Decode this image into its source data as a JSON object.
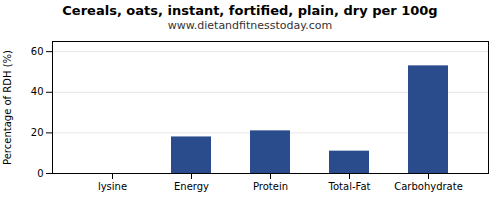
{
  "chart_data": {
    "type": "bar",
    "title": "Cereals, oats, instant, fortified, plain, dry per 100g",
    "subtitle": "www.dietandfitnesstoday.com",
    "categories": [
      "lysine",
      "Energy",
      "Protein",
      "Total-Fat",
      "Carbohydrate"
    ],
    "values": [
      0,
      18,
      21,
      11,
      53
    ],
    "color": "#2a4b8c",
    "ylabel": "Percentage of RDH (%)",
    "ylim": [
      0,
      65
    ],
    "yticks": [
      0,
      20,
      40,
      60
    ],
    "grid": true
  }
}
